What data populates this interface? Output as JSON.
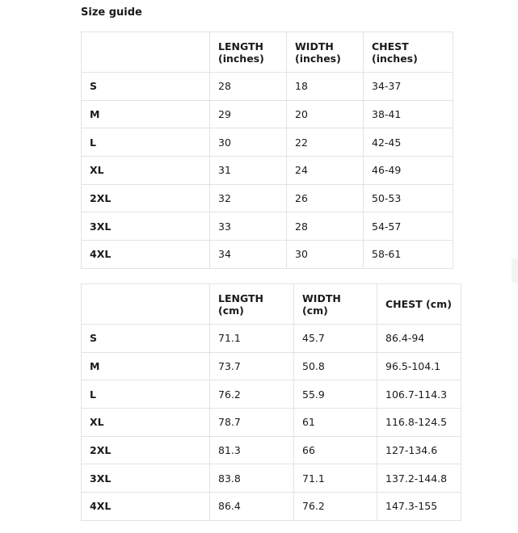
{
  "title": "Size guide",
  "inches_table": {
    "headers": [
      {
        "line1": "",
        "line2": ""
      },
      {
        "line1": "LENGTH",
        "line2": "(inches)"
      },
      {
        "line1": "WIDTH",
        "line2": "(inches)"
      },
      {
        "line1": "CHEST",
        "line2": "(inches)"
      }
    ],
    "rows": [
      {
        "size": "S",
        "length": "28",
        "width": "18",
        "chest": "34-37"
      },
      {
        "size": "M",
        "length": "29",
        "width": "20",
        "chest": "38-41"
      },
      {
        "size": "L",
        "length": "30",
        "width": "22",
        "chest": "42-45"
      },
      {
        "size": "XL",
        "length": "31",
        "width": "24",
        "chest": "46-49"
      },
      {
        "size": "2XL",
        "length": "32",
        "width": "26",
        "chest": "50-53"
      },
      {
        "size": "3XL",
        "length": "33",
        "width": "28",
        "chest": "54-57"
      },
      {
        "size": "4XL",
        "length": "34",
        "width": "30",
        "chest": "58-61"
      }
    ]
  },
  "cm_table": {
    "headers": [
      {
        "line1": "",
        "line2": ""
      },
      {
        "line1": "LENGTH",
        "line2": "(cm)"
      },
      {
        "line1": "WIDTH",
        "line2": "(cm)"
      },
      {
        "line1": "CHEST (cm)",
        "line2": ""
      }
    ],
    "rows": [
      {
        "size": "S",
        "length": "71.1",
        "width": "45.7",
        "chest": "86.4-94"
      },
      {
        "size": "M",
        "length": "73.7",
        "width": "50.8",
        "chest": "96.5-104.1"
      },
      {
        "size": "L",
        "length": "76.2",
        "width": "55.9",
        "chest": "106.7-114.3"
      },
      {
        "size": "XL",
        "length": "78.7",
        "width": "61",
        "chest": "116.8-124.5"
      },
      {
        "size": "2XL",
        "length": "81.3",
        "width": "66",
        "chest": "127-134.6"
      },
      {
        "size": "3XL",
        "length": "83.8",
        "width": "71.1",
        "chest": "137.2-144.8"
      },
      {
        "size": "4XL",
        "length": "86.4",
        "width": "76.2",
        "chest": "147.3-155"
      }
    ]
  }
}
